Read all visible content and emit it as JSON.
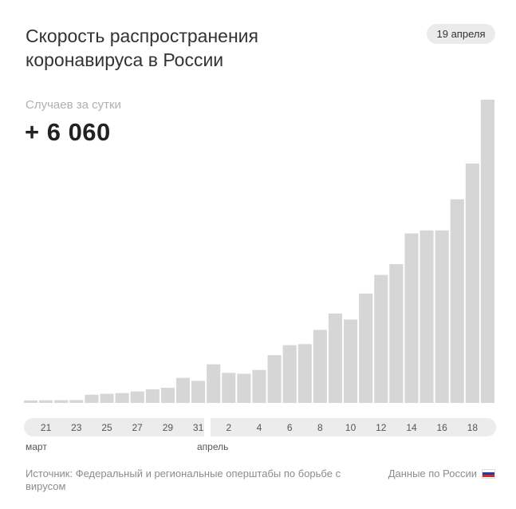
{
  "header": {
    "title_line1": "Скорость распространения",
    "title_line2": "коронавируса в России",
    "date_badge": "19 апреля"
  },
  "metric": {
    "label": "Случаев за сутки",
    "value": "+ 6 060"
  },
  "colors": {
    "bar": "#d6d6d6",
    "axis_band": "#ececec",
    "text_muted": "#8c8c8c",
    "flag": [
      "#ffffff",
      "#1c3fa7",
      "#d52b1e"
    ]
  },
  "axis": {
    "ticks": [
      "21",
      "23",
      "25",
      "27",
      "29",
      "31",
      "2",
      "4",
      "6",
      "8",
      "10",
      "12",
      "14",
      "16",
      "18"
    ],
    "months": [
      "март",
      "апрель"
    ]
  },
  "footer": {
    "source": "Источник: Федеральный и региональные оперштабы по борьбе с вирусом",
    "country": "Данные по России"
  },
  "chart_data": {
    "type": "bar",
    "categories": [
      "20.03",
      "21.03",
      "22.03",
      "23.03",
      "24.03",
      "25.03",
      "26.03",
      "27.03",
      "28.03",
      "29.03",
      "30.03",
      "31.03",
      "01.04",
      "02.04",
      "03.04",
      "04.04",
      "05.04",
      "06.04",
      "07.04",
      "08.04",
      "09.04",
      "10.04",
      "11.04",
      "12.04",
      "13.04",
      "14.04",
      "15.04",
      "16.04",
      "17.04",
      "18.04",
      "19.04"
    ],
    "values": [
      50,
      52,
      54,
      57,
      163,
      182,
      196,
      228,
      270,
      302,
      500,
      440,
      771,
      601,
      582,
      658,
      954,
      1154,
      1175,
      1459,
      1786,
      1667,
      2186,
      2558,
      2774,
      3388,
      3448,
      3448,
      4070,
      4785,
      6060
    ],
    "title": "Скорость распространения коронавируса в России",
    "xlabel": "",
    "ylabel": "Случаев за сутки",
    "ylim": [
      0,
      6060
    ],
    "grid": false
  }
}
